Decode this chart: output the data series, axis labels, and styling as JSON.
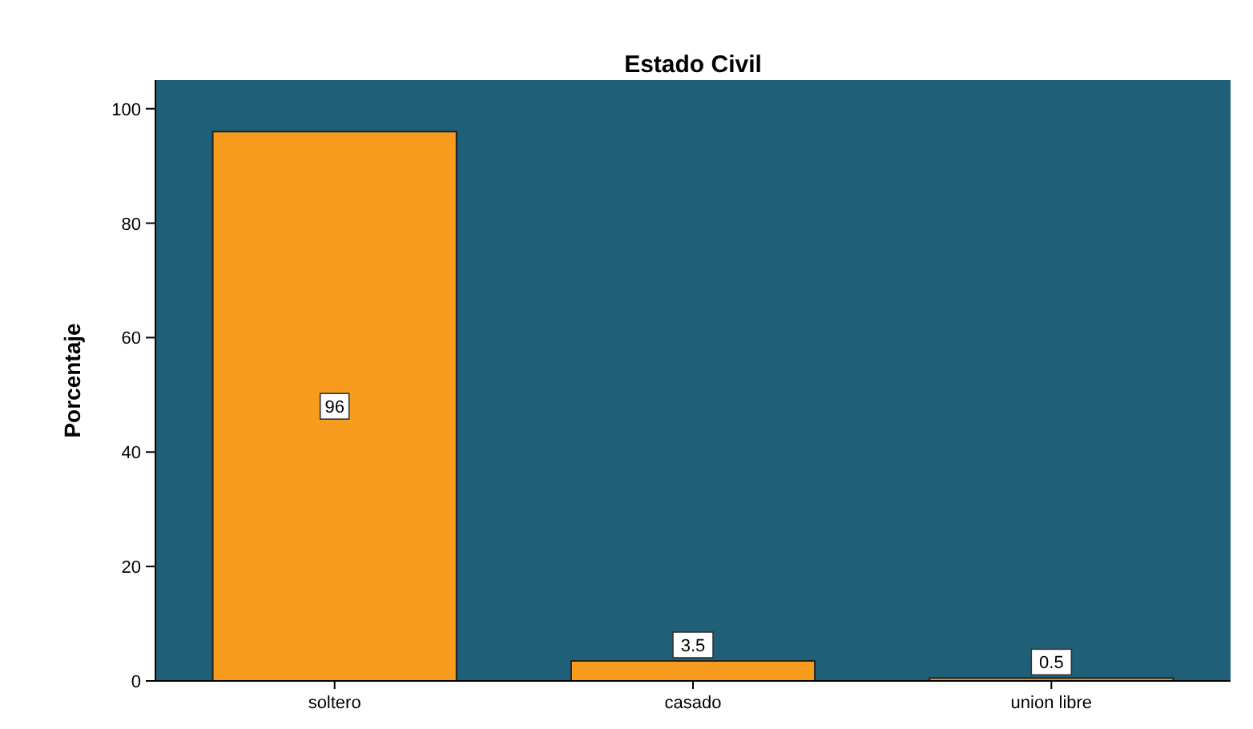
{
  "chart_data": {
    "type": "bar",
    "title": "Estado Civil",
    "ylabel": "Porcentaje",
    "categories": [
      "soltero",
      "casado",
      "union libre"
    ],
    "values": [
      96,
      3.5,
      0.5
    ],
    "color": "#f89c1f",
    "ylim": [
      0,
      105
    ],
    "yticks": [
      0,
      20,
      40,
      60,
      80,
      100
    ],
    "grid": false,
    "data_labels": true
  }
}
